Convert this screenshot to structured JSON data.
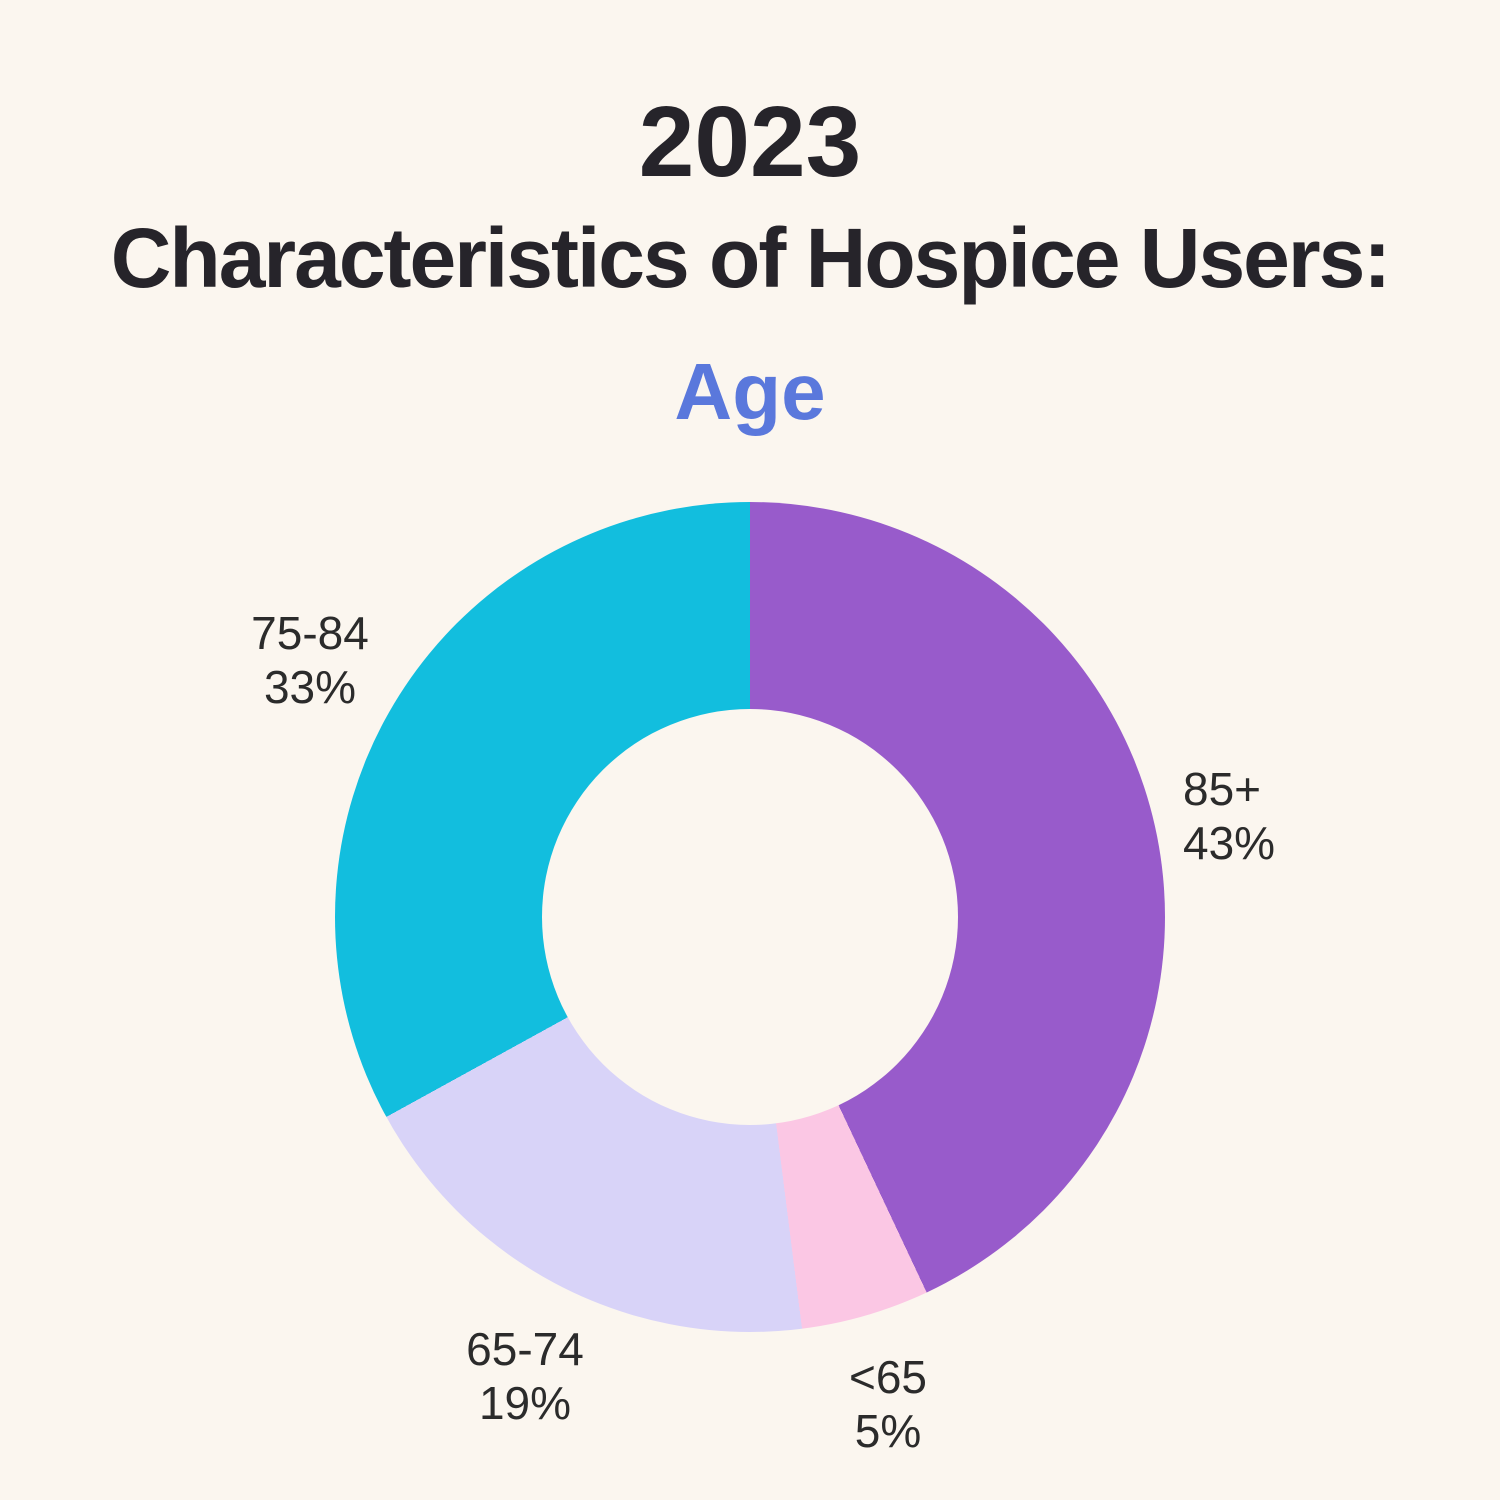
{
  "title": {
    "year": "2023",
    "main": "Characteristics of Hospice Users:",
    "subtitle": "Age"
  },
  "colors": {
    "background": "#FBF6EF",
    "title_text": "#26242A",
    "subtitle_text": "#5A78DC",
    "label_text": "#2B2B2B"
  },
  "chart_data": {
    "type": "pie",
    "subtype": "donut",
    "title": "2023 Characteristics of Hospice Users: Age",
    "start_angle_deg": 0,
    "direction": "clockwise",
    "inner_radius_ratio": 0.5,
    "legend": "none",
    "categories": [
      "85+",
      "<65",
      "65-74",
      "75-84"
    ],
    "values": [
      43,
      5,
      19,
      33
    ],
    "segments": [
      {
        "label": "85+",
        "value_pct": 43,
        "pct_label": "43%",
        "color": "#985BCB"
      },
      {
        "label": "<65",
        "value_pct": 5,
        "pct_label": "5%",
        "color": "#FBC7E4"
      },
      {
        "label": "65-74",
        "value_pct": 19,
        "pct_label": "19%",
        "color": "#D8D3F8"
      },
      {
        "label": "75-84",
        "value_pct": 33,
        "pct_label": "33%",
        "color": "#12BEDE"
      }
    ]
  }
}
